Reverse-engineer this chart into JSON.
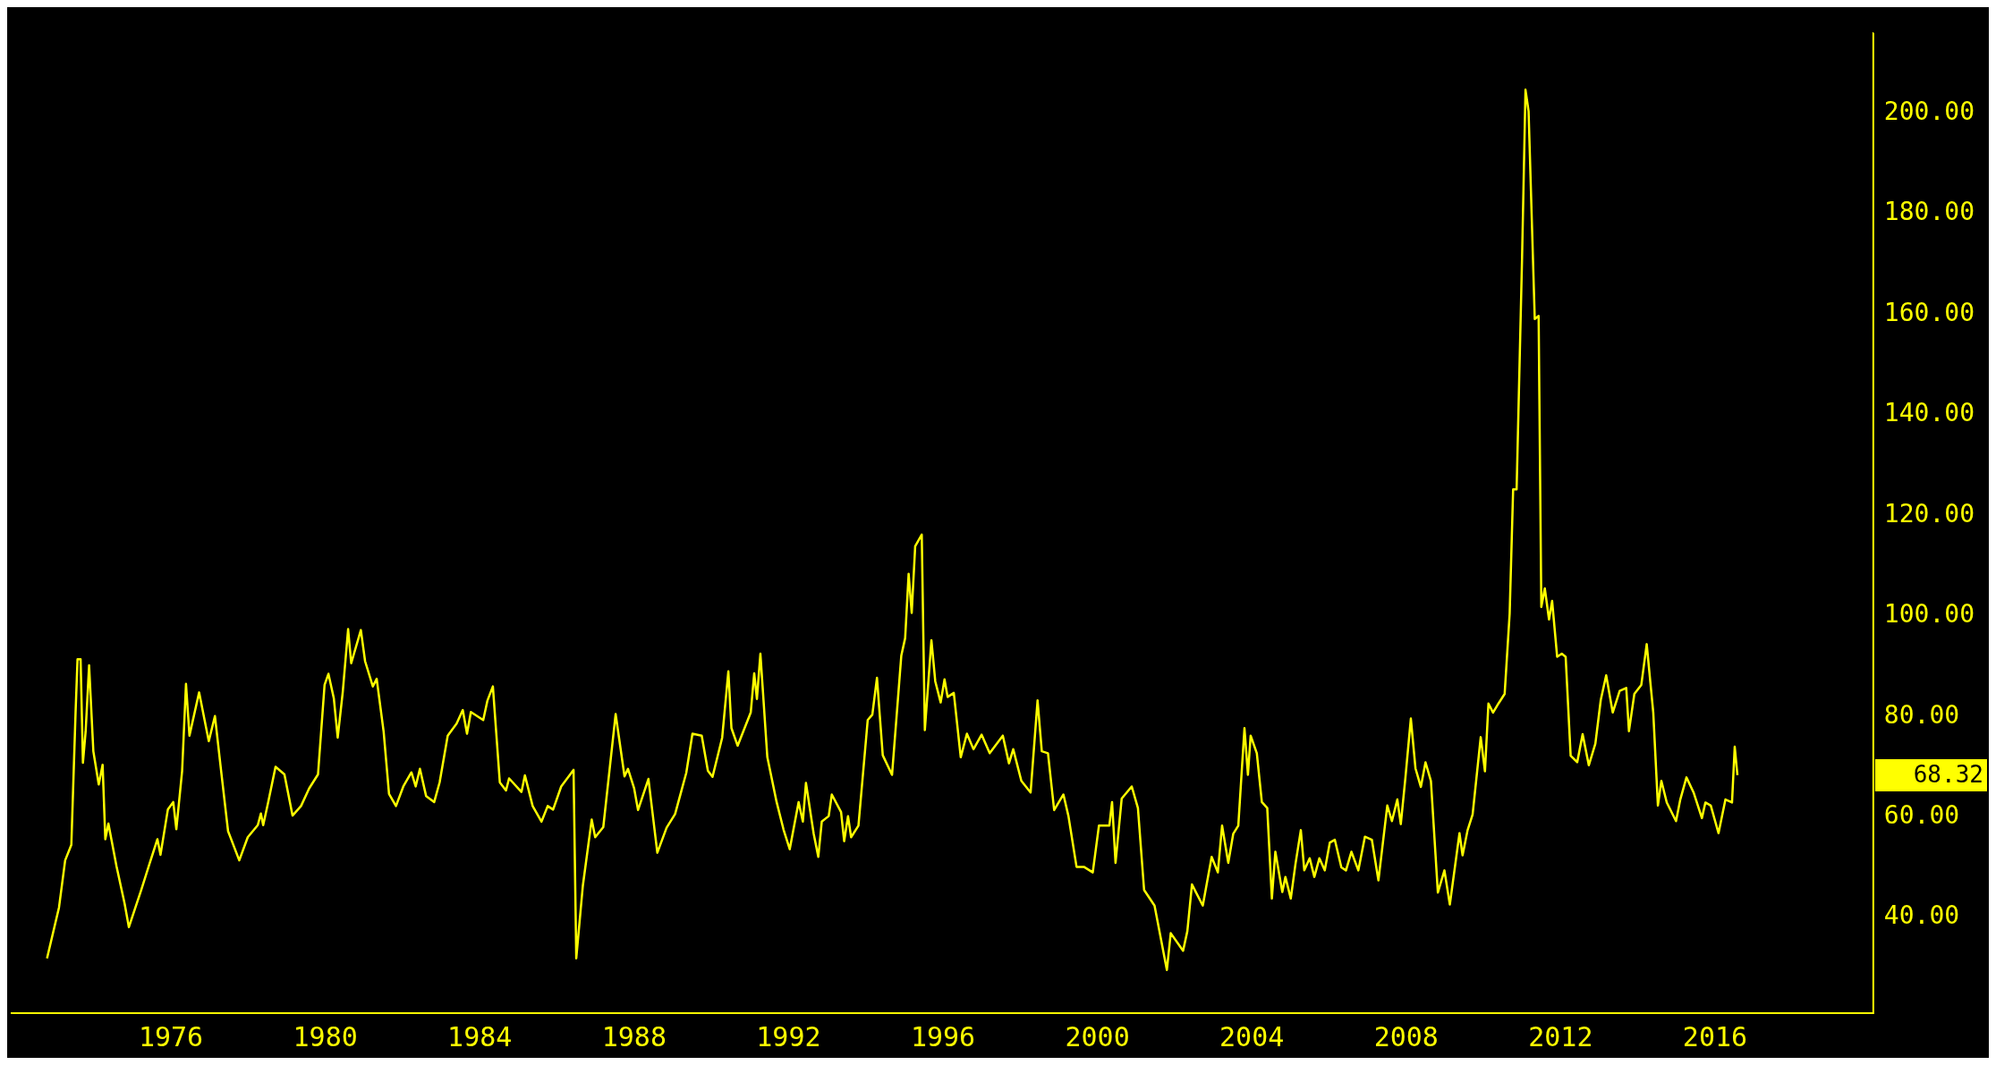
{
  "chart_data": {
    "type": "line",
    "xlim": [
      1971.85,
      2020.1
    ],
    "xticks": [
      1976,
      1980,
      1984,
      1988,
      1992,
      1996,
      2000,
      2004,
      2008,
      2012,
      2016
    ],
    "ylim": [
      21,
      216
    ],
    "yticks": [
      {
        "value": 40,
        "label": "40.00"
      },
      {
        "value": 60,
        "label": "60.00"
      },
      {
        "value": 80,
        "label": "80.00"
      },
      {
        "value": 100,
        "label": "100.00"
      },
      {
        "value": 120,
        "label": "120.00"
      },
      {
        "value": 140,
        "label": "140.00"
      },
      {
        "value": 160,
        "label": "160.00"
      },
      {
        "value": 180,
        "label": "180.00"
      },
      {
        "value": 200,
        "label": "200.00"
      }
    ],
    "grid": false,
    "legend": false,
    "marker": "none",
    "line_style": "solid",
    "annotations": [
      "68.32"
    ],
    "x": [
      1972.79,
      1973.1,
      1973.26,
      1973.42,
      1973.53,
      1973.58,
      1973.66,
      1973.72,
      1973.79,
      1973.88,
      1973.99,
      1974.13,
      1974.23,
      1974.3,
      1974.38,
      1974.59,
      1974.8,
      1974.91,
      1975.23,
      1975.44,
      1975.65,
      1975.73,
      1975.92,
      1976.06,
      1976.14,
      1976.29,
      1976.39,
      1976.48,
      1976.73,
      1976.98,
      1977.14,
      1977.3,
      1977.48,
      1977.77,
      1977.99,
      1978.25,
      1978.33,
      1978.39,
      1978.52,
      1978.71,
      1978.94,
      1979.15,
      1979.37,
      1979.58,
      1979.81,
      1979.98,
      1980.08,
      1980.22,
      1980.32,
      1980.45,
      1980.59,
      1980.67,
      1980.92,
      1981.03,
      1981.23,
      1981.33,
      1981.51,
      1981.65,
      1981.83,
      1982.02,
      1982.23,
      1982.34,
      1982.45,
      1982.61,
      1982.82,
      1982.96,
      1983.17,
      1983.4,
      1983.56,
      1983.67,
      1983.77,
      1984.09,
      1984.2,
      1984.34,
      1984.52,
      1984.68,
      1984.76,
      1985.08,
      1985.17,
      1985.37,
      1985.6,
      1985.76,
      1985.9,
      1986.11,
      1986.43,
      1986.5,
      1986.67,
      1986.9,
      1986.99,
      1987.2,
      1987.52,
      1987.75,
      1987.84,
      1988.0,
      1988.1,
      1988.37,
      1988.6,
      1988.84,
      1989.06,
      1989.35,
      1989.51,
      1989.75,
      1989.91,
      1990.03,
      1990.28,
      1990.44,
      1990.52,
      1990.68,
      1991.02,
      1991.11,
      1991.18,
      1991.27,
      1991.45,
      1991.69,
      1991.87,
      1992.03,
      1992.26,
      1992.37,
      1992.45,
      1992.65,
      1992.77,
      1992.86,
      1993.04,
      1993.12,
      1993.36,
      1993.44,
      1993.54,
      1993.62,
      1993.81,
      1994.05,
      1994.17,
      1994.29,
      1994.44,
      1994.68,
      1994.92,
      1995.02,
      1995.11,
      1995.19,
      1995.28,
      1995.45,
      1995.53,
      1995.7,
      1995.8,
      1995.94,
      1996.04,
      1996.12,
      1996.28,
      1996.46,
      1996.62,
      1996.79,
      1997.0,
      1997.21,
      1997.55,
      1997.71,
      1997.82,
      1998.03,
      1998.27,
      1998.45,
      1998.56,
      1998.72,
      1998.88,
      1999.12,
      1999.25,
      1999.46,
      1999.65,
      1999.88,
      2000.04,
      2000.31,
      2000.38,
      2000.47,
      2000.63,
      2000.89,
      2001.05,
      2001.21,
      2001.48,
      2001.8,
      2001.9,
      2002.22,
      2002.33,
      2002.45,
      2002.73,
      2002.96,
      2003.12,
      2003.23,
      2003.39,
      2003.52,
      2003.65,
      2003.81,
      2003.9,
      2003.97,
      2004.13,
      2004.26,
      2004.4,
      2004.52,
      2004.61,
      2004.79,
      2004.87,
      2005.01,
      2005.13,
      2005.27,
      2005.36,
      2005.5,
      2005.62,
      2005.75,
      2005.89,
      2006.02,
      2006.15,
      2006.32,
      2006.44,
      2006.58,
      2006.76,
      2006.93,
      2007.11,
      2007.28,
      2007.51,
      2007.63,
      2007.77,
      2007.86,
      2007.98,
      2008.12,
      2008.24,
      2008.38,
      2008.5,
      2008.64,
      2008.82,
      2008.99,
      2009.13,
      2009.38,
      2009.46,
      2009.59,
      2009.72,
      2009.93,
      2010.04,
      2010.13,
      2010.25,
      2010.39,
      2010.55,
      2010.68,
      2010.77,
      2010.86,
      2011.0,
      2011.09,
      2011.17,
      2011.33,
      2011.43,
      2011.5,
      2011.59,
      2011.7,
      2011.78,
      2011.91,
      2012.03,
      2012.13,
      2012.26,
      2012.43,
      2012.57,
      2012.73,
      2012.9,
      2013.04,
      2013.18,
      2013.35,
      2013.53,
      2013.7,
      2013.77,
      2013.91,
      2014.09,
      2014.23,
      2014.4,
      2014.52,
      2014.61,
      2014.75,
      2014.99,
      2015.1,
      2015.26,
      2015.45,
      2015.66,
      2015.75,
      2015.89,
      2016.09,
      2016.27,
      2016.44,
      2016.51,
      2016.58
    ],
    "series": [
      {
        "color": "#ffff00",
        "values": [
          31.9,
          42.0,
          51.4,
          54.5,
          80.9,
          91.4,
          91.4,
          70.8,
          77.0,
          90.2,
          73.1,
          66.5,
          70.4,
          55.6,
          58.7,
          50.2,
          42.8,
          38.1,
          45.5,
          50.6,
          55.6,
          52.5,
          61.5,
          63.0,
          57.6,
          69.2,
          86.5,
          76.2,
          84.8,
          75.1,
          80.1,
          69.2,
          57.2,
          51.4,
          56.0,
          58.4,
          60.7,
          58.4,
          63.0,
          70.0,
          68.5,
          60.3,
          62.2,
          65.7,
          68.5,
          86.3,
          88.5,
          83.6,
          75.8,
          84.8,
          97.4,
          90.6,
          97.2,
          91.0,
          86.0,
          87.5,
          77.0,
          64.6,
          62.2,
          66.1,
          68.9,
          66.1,
          69.6,
          64.2,
          63.0,
          66.9,
          76.2,
          78.6,
          81.3,
          76.6,
          80.9,
          79.3,
          83.2,
          86.0,
          66.9,
          65.3,
          67.7,
          65.0,
          68.3,
          62.2,
          59.1,
          62.2,
          61.5,
          66.1,
          69.4,
          31.9,
          46.3,
          59.5,
          56.0,
          58.0,
          80.5,
          68.1,
          69.6,
          65.7,
          61.4,
          67.6,
          52.9,
          57.9,
          60.6,
          68.8,
          76.6,
          76.2,
          69.2,
          68.0,
          75.8,
          89.0,
          77.7,
          74.2,
          80.8,
          88.6,
          83.5,
          92.5,
          71.9,
          63.0,
          57.5,
          53.6,
          63.0,
          59.1,
          66.8,
          56.7,
          52.1,
          59.1,
          60.2,
          64.5,
          61.0,
          55.2,
          60.2,
          56.0,
          58.3,
          79.3,
          80.4,
          87.7,
          72.3,
          68.4,
          92.1,
          95.6,
          108.4,
          100.6,
          113.9,
          116.2,
          77.3,
          95.2,
          87.0,
          82.8,
          87.4,
          83.9,
          84.7,
          71.9,
          76.6,
          73.5,
          76.4,
          72.7,
          76.2,
          70.7,
          73.5,
          67.2,
          64.9,
          83.2,
          73.1,
          72.7,
          61.4,
          64.5,
          60.2,
          50.1,
          50.1,
          49.0,
          58.3,
          58.3,
          63.0,
          50.9,
          63.7,
          66.1,
          61.8,
          45.5,
          42.4,
          29.6,
          36.9,
          33.4,
          37.3,
          46.6,
          42.4,
          52.1,
          49.0,
          58.3,
          50.9,
          56.7,
          58.3,
          77.7,
          68.4,
          76.2,
          72.7,
          63.0,
          61.8,
          43.8,
          53.1,
          45.1,
          48.1,
          43.8,
          50.6,
          57.4,
          49.4,
          51.8,
          48.1,
          51.8,
          49.4,
          54.9,
          55.5,
          50.0,
          49.4,
          53.1,
          49.4,
          56.1,
          55.5,
          47.4,
          62.3,
          59.2,
          63.5,
          58.6,
          67.9,
          79.6,
          69.7,
          66.0,
          70.9,
          67.2,
          45.0,
          49.4,
          42.6,
          56.8,
          52.4,
          57.4,
          60.5,
          75.9,
          69.1,
          82.6,
          80.8,
          82.6,
          84.5,
          100.5,
          125.2,
          125.2,
          170.8,
          204.7,
          200.4,
          159.1,
          159.7,
          101.8,
          105.5,
          99.3,
          103.0,
          91.9,
          92.5,
          91.9,
          72.2,
          70.9,
          76.5,
          70.3,
          74.6,
          83.3,
          88.2,
          80.8,
          85.1,
          85.7,
          77.1,
          84.5,
          86.3,
          94.4,
          80.8,
          62.3,
          67.2,
          62.9,
          59.2,
          63.5,
          67.9,
          64.8,
          59.8,
          62.9,
          62.3,
          56.8,
          63.5,
          62.9,
          74.0,
          68.32
        ]
      }
    ]
  }
}
